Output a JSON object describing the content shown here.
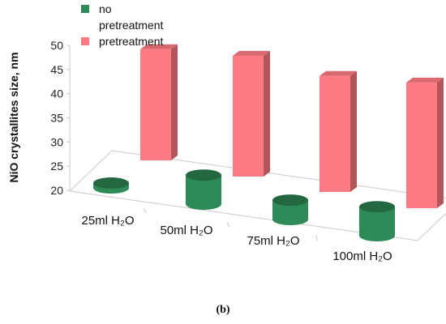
{
  "caption": "(b)",
  "colors": {
    "pretreatment": "#ff7b83",
    "no_pretreatment": "#2e8b57"
  },
  "chart_data": {
    "type": "bar",
    "style": "3d-cylinder-and-box",
    "ylabel": "NiO crystallites size, nm",
    "xlabel": "",
    "ylim": [
      20,
      50
    ],
    "yticks": [
      20,
      25,
      30,
      35,
      40,
      45,
      50
    ],
    "categories": [
      "25ml H₂O",
      "50ml H₂O",
      "75ml H₂O",
      "100ml H₂O"
    ],
    "series": [
      {
        "name": "no pretreatment",
        "legend_lines": [
          "no",
          "pretreatment"
        ],
        "shape": "cylinder",
        "values": [
          21,
          26,
          24,
          26
        ]
      },
      {
        "name": "pretreatment",
        "legend_lines": [
          "pretreatment"
        ],
        "shape": "box",
        "values": [
          43,
          45,
          44,
          46
        ]
      }
    ],
    "legend_position": "top-left",
    "grid": false
  }
}
